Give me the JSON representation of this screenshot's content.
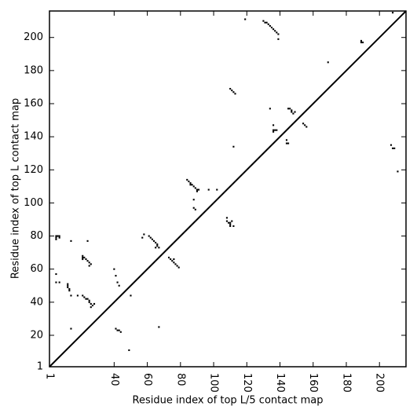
{
  "chart_data": {
    "type": "contact-map",
    "x_label": "Residue index of top L/5 contact map",
    "y_label": "Residue index of top L contact map",
    "xlim": [
      1,
      216
    ],
    "ylim": [
      1,
      216
    ],
    "xticks": [
      1,
      40,
      60,
      80,
      100,
      120,
      140,
      160,
      180,
      200
    ],
    "yticks": [
      1,
      20,
      40,
      60,
      80,
      100,
      120,
      140,
      160,
      180,
      200
    ],
    "diagonal": true,
    "series": [
      {
        "color": "#000000",
        "x": [
          5,
          5,
          5,
          6,
          7,
          7,
          5,
          5,
          7,
          12,
          12,
          13,
          13,
          12,
          14,
          18,
          14,
          21,
          21,
          21,
          22,
          23,
          24,
          25,
          26,
          25,
          24,
          21,
          22,
          23,
          24,
          25,
          25,
          26,
          26,
          27,
          28,
          14,
          41,
          42,
          43,
          44,
          40,
          41,
          42,
          43,
          50,
          49,
          57,
          58,
          61,
          62,
          63,
          64,
          65,
          66,
          66,
          67,
          65,
          73,
          74,
          75,
          76,
          76,
          77,
          78,
          79,
          67,
          84,
          85,
          86,
          87,
          88,
          89,
          90,
          90,
          91,
          86,
          88,
          88,
          89,
          97,
          102,
          119,
          130,
          131,
          132,
          133,
          134,
          135,
          136,
          137,
          138,
          139,
          139,
          169,
          189,
          190,
          189,
          208,
          108,
          108,
          109,
          110,
          110,
          110,
          111,
          112,
          110,
          111,
          112,
          113,
          112,
          134,
          136,
          136,
          137,
          138,
          136,
          144,
          144,
          145,
          145,
          146,
          147,
          147,
          148,
          149,
          154,
          155,
          156,
          207,
          208,
          209,
          211
        ],
        "y": [
          80,
          79,
          78,
          80,
          80,
          79,
          57,
          52,
          52,
          50,
          49,
          48,
          47,
          51,
          44,
          44,
          77,
          66,
          67,
          68,
          67,
          66,
          65,
          64,
          63,
          62,
          77,
          44,
          43,
          42,
          42,
          41,
          40,
          39,
          37,
          38,
          39,
          24,
          24,
          23,
          23,
          22,
          60,
          56,
          52,
          50,
          44,
          11,
          79,
          81,
          80,
          79,
          78,
          77,
          76,
          75,
          74,
          73,
          73,
          67,
          66,
          65,
          66,
          64,
          63,
          62,
          61,
          25,
          114,
          113,
          112,
          111,
          110,
          109,
          108,
          107,
          108,
          111,
          102,
          97,
          96,
          108,
          108,
          211,
          210,
          209,
          209,
          208,
          207,
          206,
          205,
          204,
          203,
          202,
          199,
          185,
          197,
          197,
          198,
          215,
          91,
          89,
          88,
          88,
          87,
          86,
          89,
          86,
          169,
          168,
          167,
          166,
          134,
          157,
          147,
          144,
          144,
          144,
          143,
          138,
          136,
          136,
          157,
          157,
          156,
          155,
          154,
          155,
          148,
          147,
          146,
          135,
          133,
          133,
          119
        ]
      }
    ]
  }
}
